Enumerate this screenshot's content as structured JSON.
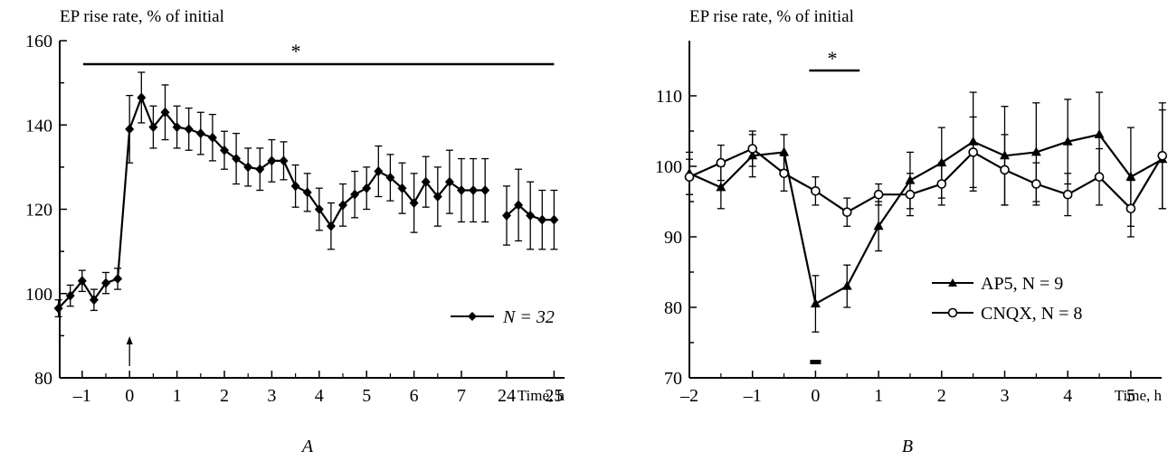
{
  "chart_data": [
    {
      "type": "line",
      "panel_label": "A",
      "ylabel": "EP rise rate, % of initial",
      "xlabel": "Time, h",
      "ylim": [
        80,
        160
      ],
      "yticks": [
        "80",
        "100",
        "120",
        "140",
        "160"
      ],
      "xticks": [
        "–1",
        "0",
        "1",
        "2",
        "3",
        "4",
        "5",
        "6",
        "7",
        "24",
        "25"
      ],
      "significance_label": "*",
      "significance_span": [
        -0.75,
        25
      ],
      "stimulus_marker": "arrow at 0 h",
      "series": [
        {
          "name": "N = 32",
          "marker": "diamond",
          "segments": [
            {
              "x": [
                -1.5,
                -1.25,
                -1,
                -0.75,
                -0.5,
                -0.25,
                0,
                0.25,
                0.5,
                0.75,
                1,
                1.25,
                1.5,
                1.75,
                2,
                2.25,
                2.5,
                2.75,
                3,
                3.25,
                3.5,
                3.75,
                4,
                4.25,
                4.5,
                4.75,
                5,
                5.25,
                5.5,
                5.75,
                6,
                6.25,
                6.5,
                6.75,
                7,
                7.25,
                7.5
              ],
              "y": [
                96.5,
                99.5,
                103,
                98.5,
                102.5,
                103.5,
                139,
                146.5,
                139.5,
                143,
                139.5,
                139,
                138,
                137,
                134,
                132,
                130,
                129.5,
                131.5,
                131.5,
                125.5,
                124,
                120,
                116,
                121,
                123.5,
                125,
                129,
                127.5,
                125,
                121.5,
                126.5,
                123,
                126.5,
                124.5,
                124.5,
                124.5
              ],
              "err": [
                2,
                2.5,
                2.5,
                2.5,
                2.5,
                2.5,
                8,
                6,
                5,
                6.5,
                5,
                5,
                5,
                5.5,
                4.5,
                6,
                4.5,
                5,
                5,
                4.5,
                5,
                4.5,
                5,
                5.5,
                5,
                5.5,
                5,
                6,
                5.5,
                6,
                7,
                6,
                7,
                7.5,
                7.5,
                7.5,
                7.5
              ]
            },
            {
              "x": [
                24,
                24.25,
                24.5,
                24.75,
                25
              ],
              "y": [
                118.5,
                121,
                118.5,
                117.5,
                117.5
              ],
              "err": [
                7,
                8.5,
                8,
                7,
                7
              ]
            }
          ]
        }
      ]
    },
    {
      "type": "line",
      "panel_label": "B",
      "ylabel": "EP rise rate, % of initial",
      "xlabel": "Time, h",
      "ylim": [
        70,
        115
      ],
      "yticks": [
        "70",
        "80",
        "90",
        "100",
        "110"
      ],
      "xticks": [
        "–2",
        "–1",
        "0",
        "1",
        "2",
        "3",
        "4",
        "5"
      ],
      "significance_label": "*",
      "significance_span": [
        -0.1,
        0.7
      ],
      "drug_application_bar": [
        -0.05,
        0.05
      ],
      "series": [
        {
          "name": "AP5, N = 9",
          "marker": "filled-triangle",
          "x": [
            -2,
            -1.5,
            -1,
            -0.5,
            0,
            0.5,
            1,
            1.5,
            2,
            2.5,
            3,
            3.5,
            4,
            4.5,
            5,
            5.5
          ],
          "y": [
            99,
            97,
            101.5,
            102,
            80.5,
            83,
            91.5,
            98,
            100.5,
            103.5,
            101.5,
            102,
            103.5,
            104.5,
            98.5,
            101
          ],
          "err": [
            3,
            3,
            3,
            2.5,
            4,
            3,
            3.5,
            4,
            5,
            7,
            7,
            7,
            6,
            6,
            7,
            7
          ]
        },
        {
          "name": "CNQX, N = 8",
          "marker": "open-circle",
          "x": [
            -2,
            -1.5,
            -1,
            -0.5,
            0,
            0.5,
            1,
            1.5,
            2,
            2.5,
            3,
            3.5,
            4,
            4.5,
            5,
            5.5
          ],
          "y": [
            98.5,
            100.5,
            102.5,
            99,
            96.5,
            93.5,
            96,
            96,
            97.5,
            102,
            99.5,
            97.5,
            96,
            98.5,
            94,
            101.5
          ],
          "err": [
            2.5,
            2.5,
            2.5,
            2.5,
            2,
            2,
            1.5,
            3,
            3,
            5,
            5,
            3,
            3,
            4,
            4,
            7.5
          ]
        }
      ]
    }
  ]
}
